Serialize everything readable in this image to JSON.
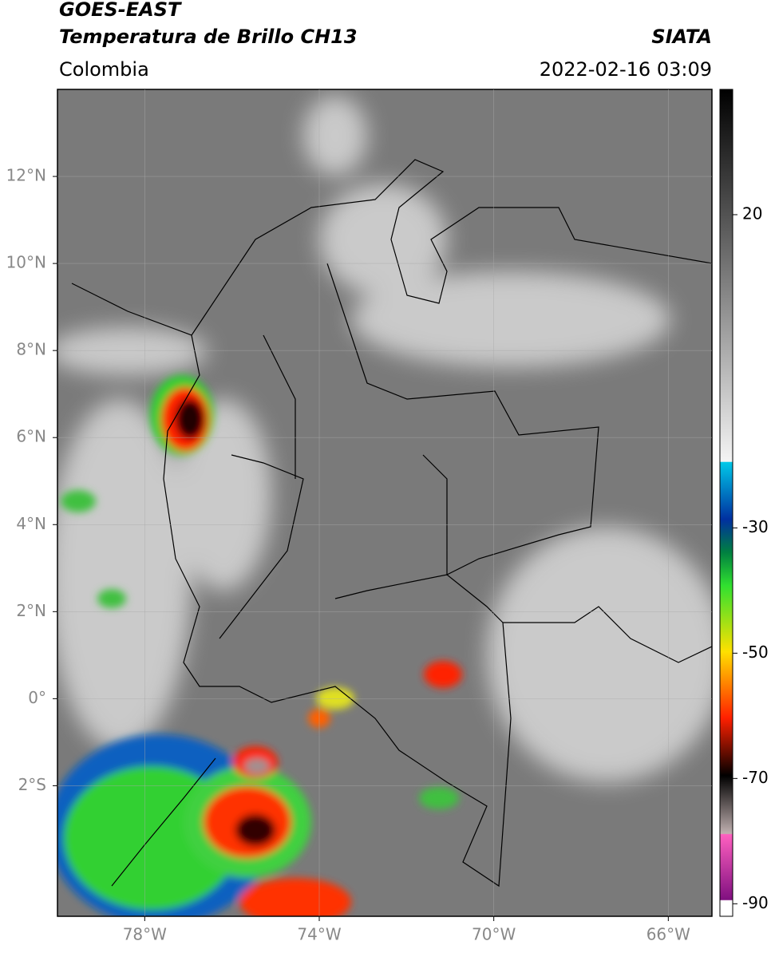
{
  "header": {
    "title_line1": "GOES-EAST",
    "title_line2": "Temperatura de Brillo CH13",
    "region": "Colombia",
    "source": "SIATA",
    "timestamp": "2022-02-16 03:09"
  },
  "map": {
    "lonlim": [
      -80,
      -65
    ],
    "latlim": [
      -5,
      14
    ],
    "lon_ticks": [
      {
        "value": -78,
        "label": "78°W"
      },
      {
        "value": -74,
        "label": "74°W"
      },
      {
        "value": -70,
        "label": "70°W"
      },
      {
        "value": -66,
        "label": "66°W"
      }
    ],
    "lat_ticks": [
      {
        "value": 12,
        "label": "12°N"
      },
      {
        "value": 10,
        "label": "10°N"
      },
      {
        "value": 8,
        "label": "8°N"
      },
      {
        "value": 6,
        "label": "6°N"
      },
      {
        "value": 4,
        "label": "4°N"
      },
      {
        "value": 2,
        "label": "2°N"
      },
      {
        "value": 0,
        "label": "0°"
      },
      {
        "value": -2,
        "label": "2°S"
      }
    ]
  },
  "colorbar": {
    "range": [
      -92,
      40
    ],
    "ticks": [
      20,
      -30,
      -50,
      -70,
      -90
    ]
  }
}
